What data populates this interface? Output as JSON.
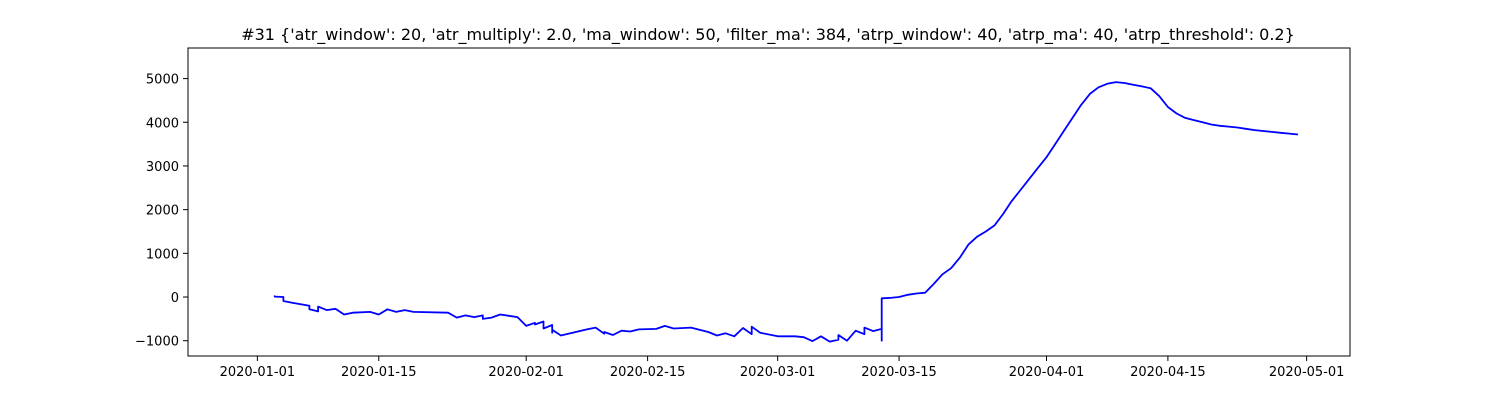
{
  "chart_data": {
    "type": "line",
    "title": "#31 {'atr_window': 20, 'atr_multiply': 2.0, 'ma_window': 50, 'filter_ma': 384, 'atrp_window': 40, 'atrp_ma': 40, 'atrp_threshold': 0.2}",
    "xlabel": "",
    "ylabel": "",
    "x_ticks": [
      "2020-01-01",
      "2020-01-15",
      "2020-02-01",
      "2020-02-15",
      "2020-03-01",
      "2020-03-15",
      "2020-04-01",
      "2020-04-15",
      "2020-05-01"
    ],
    "y_ticks": [
      -1000,
      0,
      1000,
      2000,
      3000,
      4000,
      5000
    ],
    "xlim": [
      "2019-12-24",
      "2020-05-06"
    ],
    "ylim": [
      -1350,
      5700
    ],
    "grid": false,
    "series": [
      {
        "color": "#0000ff",
        "points": [
          [
            "2020-01-03",
            0
          ],
          [
            "2020-01-03",
            20
          ],
          [
            "2020-01-03",
            10
          ],
          [
            "2020-01-04",
            0
          ],
          [
            "2020-01-04",
            -90
          ],
          [
            "2020-01-05",
            -130
          ],
          [
            "2020-01-07",
            -200
          ],
          [
            "2020-01-07",
            -280
          ],
          [
            "2020-01-08",
            -330
          ],
          [
            "2020-01-08",
            -220
          ],
          [
            "2020-01-09",
            -300
          ],
          [
            "2020-01-10",
            -270
          ],
          [
            "2020-01-11",
            -400
          ],
          [
            "2020-01-12",
            -360
          ],
          [
            "2020-01-14",
            -340
          ],
          [
            "2020-01-15",
            -400
          ],
          [
            "2020-01-16",
            -280
          ],
          [
            "2020-01-17",
            -340
          ],
          [
            "2020-01-18",
            -300
          ],
          [
            "2020-01-19",
            -340
          ],
          [
            "2020-01-23",
            -360
          ],
          [
            "2020-01-24",
            -470
          ],
          [
            "2020-01-25",
            -420
          ],
          [
            "2020-01-26",
            -460
          ],
          [
            "2020-01-27",
            -420
          ],
          [
            "2020-01-27",
            -500
          ],
          [
            "2020-01-28",
            -470
          ],
          [
            "2020-01-29",
            -400
          ],
          [
            "2020-01-31",
            -460
          ],
          [
            "2020-02-01",
            -660
          ],
          [
            "2020-02-02",
            -590
          ],
          [
            "2020-02-02",
            -630
          ],
          [
            "2020-02-03",
            -560
          ],
          [
            "2020-02-03",
            -720
          ],
          [
            "2020-02-04",
            -640
          ],
          [
            "2020-02-04",
            -820
          ],
          [
            "2020-02-04",
            -750
          ],
          [
            "2020-02-05",
            -880
          ],
          [
            "2020-02-08",
            -740
          ],
          [
            "2020-02-09",
            -700
          ],
          [
            "2020-02-10",
            -840
          ],
          [
            "2020-02-10",
            -800
          ],
          [
            "2020-02-11",
            -870
          ],
          [
            "2020-02-12",
            -770
          ],
          [
            "2020-02-13",
            -790
          ],
          [
            "2020-02-14",
            -740
          ],
          [
            "2020-02-16",
            -730
          ],
          [
            "2020-02-17",
            -660
          ],
          [
            "2020-02-18",
            -720
          ],
          [
            "2020-02-20",
            -700
          ],
          [
            "2020-02-22",
            -800
          ],
          [
            "2020-02-23",
            -880
          ],
          [
            "2020-02-24",
            -830
          ],
          [
            "2020-02-25",
            -900
          ],
          [
            "2020-02-26",
            -710
          ],
          [
            "2020-02-27",
            -850
          ],
          [
            "2020-02-27",
            -680
          ],
          [
            "2020-02-28",
            -820
          ],
          [
            "2020-03-01",
            -900
          ],
          [
            "2020-03-03",
            -900
          ],
          [
            "2020-03-04",
            -920
          ],
          [
            "2020-03-05",
            -1010
          ],
          [
            "2020-03-06",
            -900
          ],
          [
            "2020-03-07",
            -1020
          ],
          [
            "2020-03-08",
            -980
          ],
          [
            "2020-03-08",
            -870
          ],
          [
            "2020-03-09",
            -1000
          ],
          [
            "2020-03-10",
            -770
          ],
          [
            "2020-03-11",
            -850
          ],
          [
            "2020-03-11",
            -700
          ],
          [
            "2020-03-12",
            -780
          ],
          [
            "2020-03-13",
            -730
          ],
          [
            "2020-03-13",
            -750
          ],
          [
            "2020-03-13",
            -1000
          ],
          [
            "2020-03-13",
            -30
          ],
          [
            "2020-03-14",
            -20
          ],
          [
            "2020-03-15",
            0
          ],
          [
            "2020-03-16",
            50
          ],
          [
            "2020-03-17",
            80
          ],
          [
            "2020-03-18",
            100
          ],
          [
            "2020-03-19",
            300
          ],
          [
            "2020-03-20",
            520
          ],
          [
            "2020-03-21",
            660
          ],
          [
            "2020-03-22",
            900
          ],
          [
            "2020-03-23",
            1200
          ],
          [
            "2020-03-24",
            1380
          ],
          [
            "2020-03-25",
            1500
          ],
          [
            "2020-03-26",
            1640
          ],
          [
            "2020-03-27",
            1900
          ],
          [
            "2020-03-28",
            2200
          ],
          [
            "2020-03-29",
            2450
          ],
          [
            "2020-03-30",
            2700
          ],
          [
            "2020-03-31",
            2950
          ],
          [
            "2020-04-01",
            3200
          ],
          [
            "2020-04-02",
            3500
          ],
          [
            "2020-04-03",
            3800
          ],
          [
            "2020-04-04",
            4100
          ],
          [
            "2020-04-05",
            4400
          ],
          [
            "2020-04-06",
            4650
          ],
          [
            "2020-04-07",
            4800
          ],
          [
            "2020-04-08",
            4880
          ],
          [
            "2020-04-09",
            4920
          ],
          [
            "2020-04-10",
            4900
          ],
          [
            "2020-04-11",
            4860
          ],
          [
            "2020-04-12",
            4820
          ],
          [
            "2020-04-13",
            4780
          ],
          [
            "2020-04-14",
            4600
          ],
          [
            "2020-04-15",
            4350
          ],
          [
            "2020-04-16",
            4200
          ],
          [
            "2020-04-17",
            4100
          ],
          [
            "2020-04-18",
            4050
          ],
          [
            "2020-04-19",
            4000
          ],
          [
            "2020-04-20",
            3950
          ],
          [
            "2020-04-21",
            3920
          ],
          [
            "2020-04-22",
            3900
          ],
          [
            "2020-04-23",
            3880
          ],
          [
            "2020-04-24",
            3850
          ],
          [
            "2020-04-25",
            3820
          ],
          [
            "2020-04-26",
            3800
          ],
          [
            "2020-04-27",
            3780
          ],
          [
            "2020-04-28",
            3760
          ],
          [
            "2020-04-29",
            3740
          ],
          [
            "2020-04-30",
            3720
          ]
        ]
      }
    ]
  }
}
